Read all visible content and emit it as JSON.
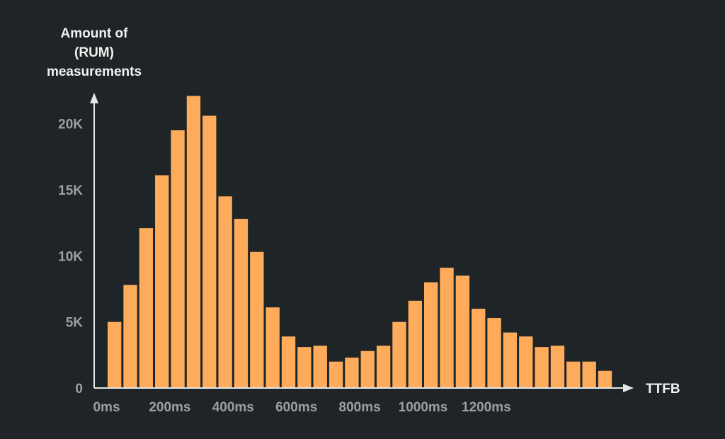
{
  "colors": {
    "background": "#1f2426",
    "bar": "#ffab5c",
    "axis": "#e6e6e6",
    "tick_text": "#9aa0a3",
    "title_text": "#f2f2f2"
  },
  "chart_data": {
    "type": "bar",
    "title": "",
    "ylabel_lines": [
      "Amount of",
      "(RUM)",
      "measurements"
    ],
    "xlabel": "TTFB",
    "x_unit": "ms",
    "bin_width": 50,
    "x": [
      0,
      50,
      100,
      150,
      200,
      250,
      300,
      350,
      400,
      450,
      500,
      550,
      600,
      650,
      700,
      750,
      800,
      850,
      900,
      950,
      1000,
      1050,
      1100,
      1150,
      1200,
      1250,
      1300,
      1350,
      1400,
      1450,
      1500,
      1550
    ],
    "values": [
      5000,
      7800,
      12100,
      16100,
      19500,
      22100,
      20600,
      14500,
      12800,
      10300,
      6100,
      3900,
      3100,
      3200,
      2000,
      2300,
      2800,
      3200,
      5000,
      6600,
      8000,
      9100,
      8500,
      6000,
      5300,
      4200,
      3900,
      3100,
      3200,
      2000,
      2000,
      1300
    ],
    "xlim": [
      0,
      1600
    ],
    "ylim": [
      0,
      22500
    ],
    "x_ticks": [
      0,
      200,
      400,
      600,
      800,
      1000,
      1200
    ],
    "x_tick_labels": [
      "0ms",
      "200ms",
      "400ms",
      "600ms",
      "800ms",
      "1000ms",
      "1200ms"
    ],
    "y_ticks": [
      0,
      5000,
      10000,
      15000,
      20000
    ],
    "y_tick_labels": [
      "0",
      "5K",
      "10K",
      "15K",
      "20K"
    ],
    "grid": false,
    "legend": "none"
  }
}
